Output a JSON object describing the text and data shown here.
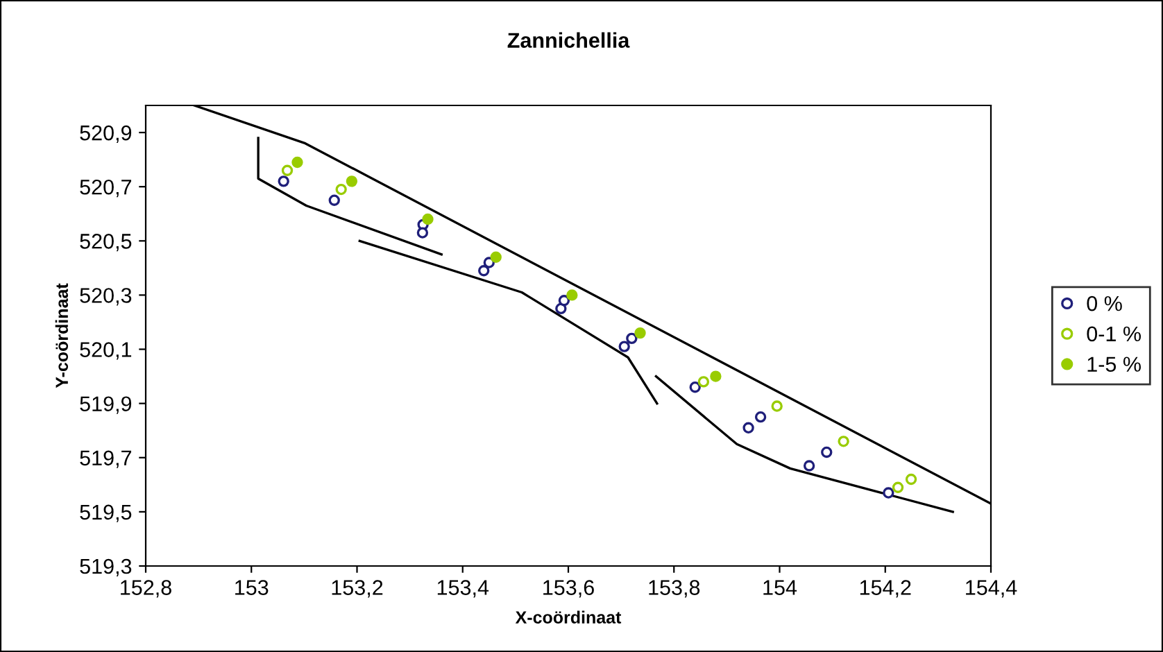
{
  "chart_data": {
    "type": "scatter",
    "title": "Zannichellia",
    "xlabel": "X-coördinaat",
    "ylabel": "Y-coördinaat",
    "xlim": [
      152.8,
      154.4
    ],
    "xticks": [
      {
        "value": 152.8,
        "label": "152,8"
      },
      {
        "value": 153,
        "label": "153"
      },
      {
        "value": 153.2,
        "label": "153,2"
      },
      {
        "value": 153.4,
        "label": "153,4"
      },
      {
        "value": 153.6,
        "label": "153,6"
      },
      {
        "value": 153.8,
        "label": "153,8"
      },
      {
        "value": 154,
        "label": "154"
      },
      {
        "value": 154.2,
        "label": "154,2"
      },
      {
        "value": 154.4,
        "label": "154,4"
      }
    ],
    "ylim": [
      519.3,
      521.0
    ],
    "yticks": [
      {
        "value": 519.3,
        "label": "519,3"
      },
      {
        "value": 519.5,
        "label": "519,5"
      },
      {
        "value": 519.7,
        "label": "519,7"
      },
      {
        "value": 519.9,
        "label": "519,9"
      },
      {
        "value": 520.1,
        "label": "520,1"
      },
      {
        "value": 520.3,
        "label": "520,3"
      },
      {
        "value": 520.5,
        "label": "520,5"
      },
      {
        "value": 520.7,
        "label": "520,7"
      },
      {
        "value": 520.9,
        "label": "520,9"
      }
    ],
    "grid": false,
    "legend": "right",
    "marker": "circle",
    "series": [
      {
        "name": "0 %",
        "color": "#1f1f7a",
        "x": [
          153.061,
          153.157,
          153.325,
          153.324,
          153.44,
          153.45,
          153.586,
          153.592,
          153.706,
          153.72,
          153.84,
          153.941,
          153.964,
          154.056,
          154.089,
          154.206
        ],
        "values": [
          520.72,
          520.65,
          520.56,
          520.53,
          520.39,
          520.42,
          520.25,
          520.28,
          520.11,
          520.14,
          519.96,
          519.81,
          519.85,
          519.67,
          519.72,
          519.57
        ]
      },
      {
        "name": "0-1 %",
        "color": "#99cc00",
        "x": [
          153.068,
          153.17,
          153.856,
          153.995,
          154.121,
          154.224,
          154.249
        ],
        "values": [
          520.76,
          520.69,
          519.98,
          519.89,
          519.76,
          519.59,
          519.62
        ]
      },
      {
        "name": "1-5 %",
        "color": "#99cc00",
        "x": [
          153.087,
          153.19,
          153.334,
          153.463,
          153.607,
          153.736,
          153.879
        ],
        "values": [
          520.79,
          520.72,
          520.58,
          520.44,
          520.3,
          520.16,
          520.0
        ]
      },
      {
        "type": "line",
        "color": "#000000",
        "marker": "none",
        "x": [
          152.892,
          153.102,
          154.4
        ],
        "values": [
          521.0,
          520.86,
          519.53
        ]
      },
      {
        "type": "line",
        "color": "#000000",
        "marker": "none",
        "x": [
          153.013,
          153.013,
          153.104,
          153.36
        ],
        "values": [
          520.88,
          520.73,
          520.63,
          520.45
        ]
      },
      {
        "type": "line",
        "color": "#000000",
        "marker": "none",
        "x": [
          153.205,
          153.512,
          153.713,
          153.768
        ],
        "values": [
          520.5,
          520.31,
          520.07,
          519.9
        ]
      },
      {
        "type": "line",
        "color": "#000000",
        "marker": "none",
        "x": [
          153.766,
          153.919,
          154.02,
          154.328
        ],
        "values": [
          520.0,
          519.75,
          519.66,
          519.5
        ]
      }
    ]
  }
}
